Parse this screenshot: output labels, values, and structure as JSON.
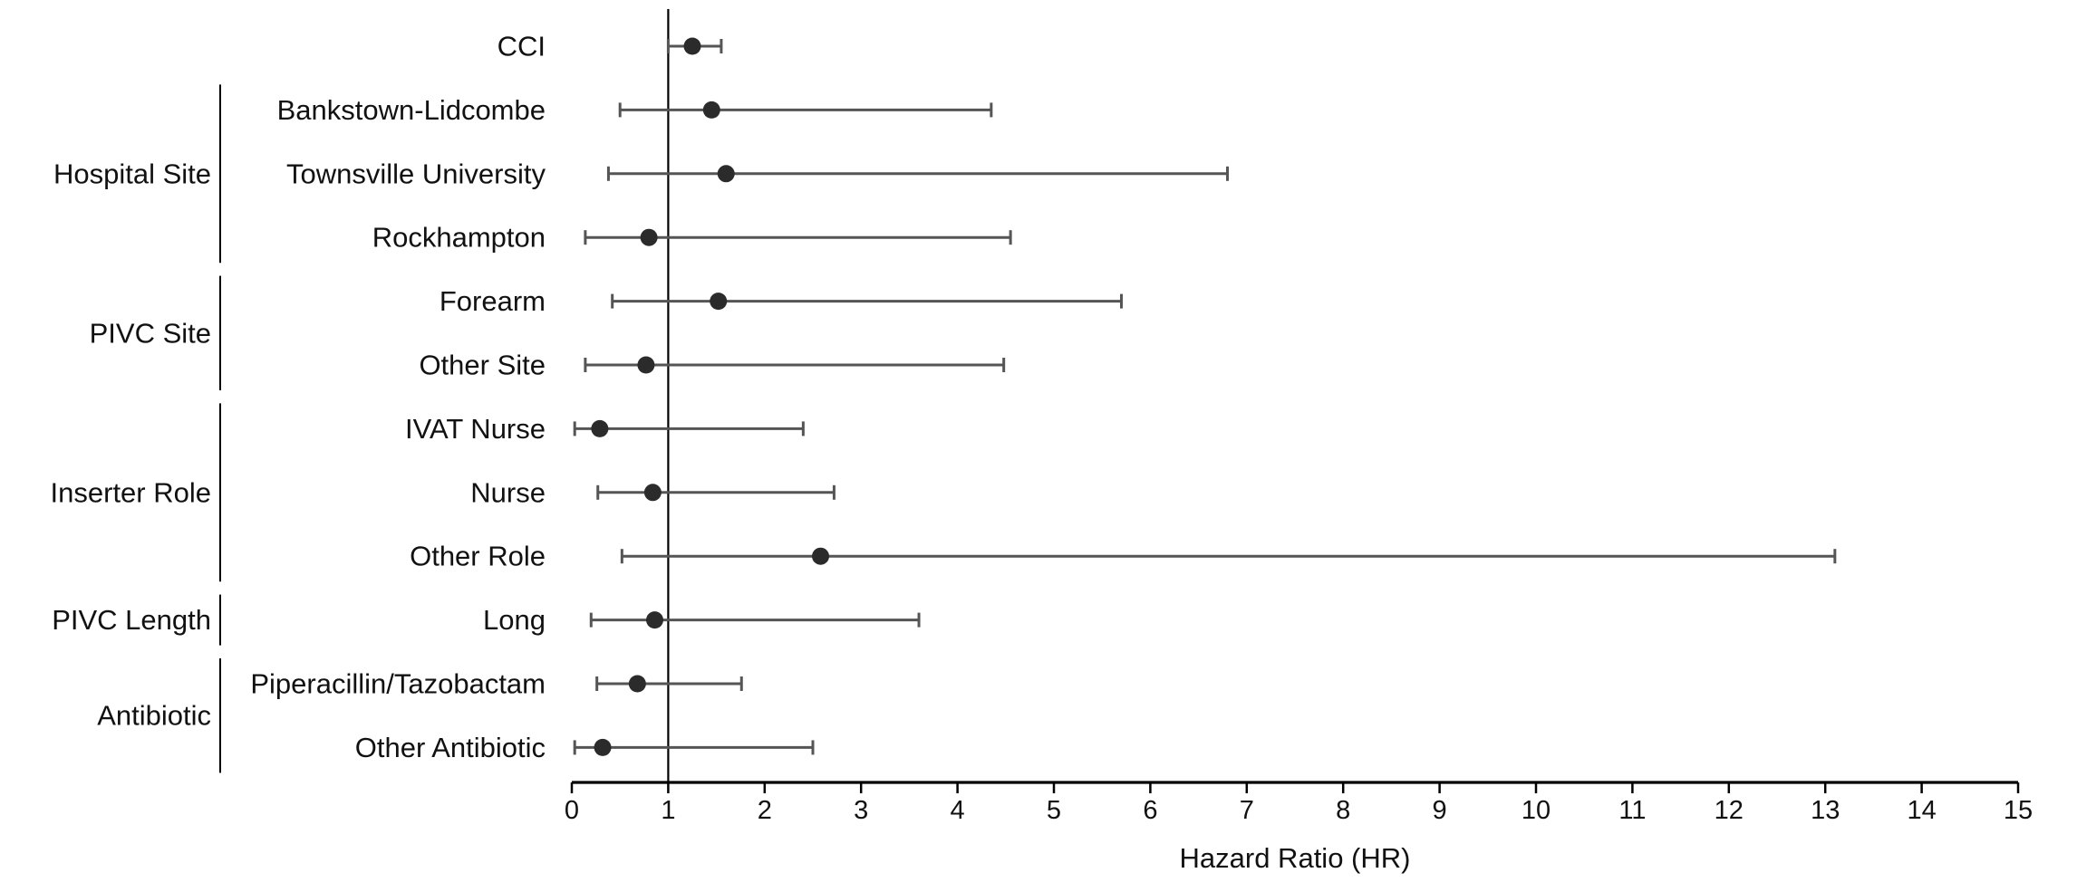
{
  "chart_data": {
    "type": "forest",
    "xlabel": "Hazard Ratio (HR)",
    "xlim": [
      0,
      15
    ],
    "x_ticks": [
      0,
      1,
      2,
      3,
      4,
      5,
      6,
      7,
      8,
      9,
      10,
      11,
      12,
      13,
      14,
      15
    ],
    "reference_line": 1,
    "grid": false,
    "rows": [
      {
        "label": "CCI",
        "group": "",
        "hr": 1.25,
        "lower": 1.0,
        "upper": 1.55
      },
      {
        "label": "Bankstown-Lidcombe",
        "group": "Hospital Site",
        "hr": 1.45,
        "lower": 0.5,
        "upper": 4.35
      },
      {
        "label": "Townsville University",
        "group": "Hospital Site",
        "hr": 1.6,
        "lower": 0.38,
        "upper": 6.8
      },
      {
        "label": "Rockhampton",
        "group": "Hospital Site",
        "hr": 0.8,
        "lower": 0.14,
        "upper": 4.55
      },
      {
        "label": "Forearm",
        "group": "PIVC Site",
        "hr": 1.52,
        "lower": 0.42,
        "upper": 5.7
      },
      {
        "label": "Other Site",
        "group": "PIVC Site",
        "hr": 0.77,
        "lower": 0.14,
        "upper": 4.48
      },
      {
        "label": "IVAT Nurse",
        "group": "Inserter Role",
        "hr": 0.29,
        "lower": 0.03,
        "upper": 2.4
      },
      {
        "label": "Nurse",
        "group": "Inserter Role",
        "hr": 0.84,
        "lower": 0.27,
        "upper": 2.72
      },
      {
        "label": "Other Role",
        "group": "Inserter Role",
        "hr": 2.58,
        "lower": 0.52,
        "upper": 13.1
      },
      {
        "label": "Long",
        "group": "PIVC Length",
        "hr": 0.86,
        "lower": 0.2,
        "upper": 3.6
      },
      {
        "label": "Piperacillin/Tazobactam",
        "group": "Antibiotic",
        "hr": 0.68,
        "lower": 0.26,
        "upper": 1.76
      },
      {
        "label": "Other Antibiotic",
        "group": "Antibiotic",
        "hr": 0.32,
        "lower": 0.03,
        "upper": 2.5
      }
    ],
    "groups": [
      {
        "label": "Hospital Site",
        "rows": [
          1,
          3
        ]
      },
      {
        "label": "PIVC Site",
        "rows": [
          4,
          5
        ]
      },
      {
        "label": "Inserter Role",
        "rows": [
          6,
          8
        ]
      },
      {
        "label": "PIVC Length",
        "rows": [
          9,
          9
        ]
      },
      {
        "label": "Antibiotic",
        "rows": [
          10,
          11
        ]
      }
    ]
  }
}
